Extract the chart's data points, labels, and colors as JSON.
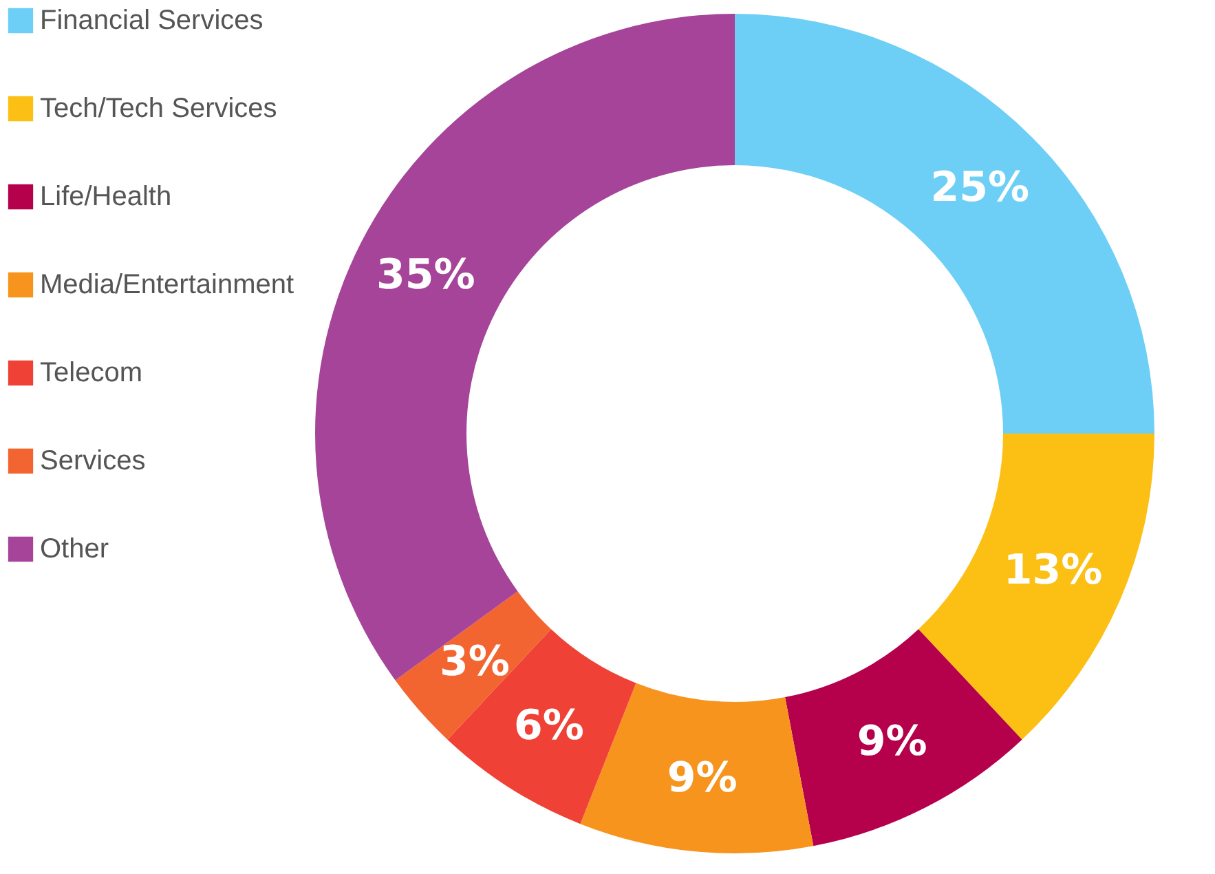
{
  "chart_data": {
    "type": "donut",
    "categories": [
      "Financial Services",
      "Tech/Tech Services",
      "Life/Health",
      "Media/Entertainment",
      "Telecom",
      "Services",
      "Other"
    ],
    "values": [
      25,
      13,
      9,
      9,
      6,
      3,
      35
    ],
    "colors": [
      "#6dcff6",
      "#fcbf14",
      "#b5004b",
      "#f7941d",
      "#ef4136",
      "#f26531",
      "#a54499"
    ],
    "value_labels": [
      "25%",
      "13%",
      "9%",
      "9%",
      "6%",
      "3%",
      "35%"
    ],
    "legend": "left"
  }
}
